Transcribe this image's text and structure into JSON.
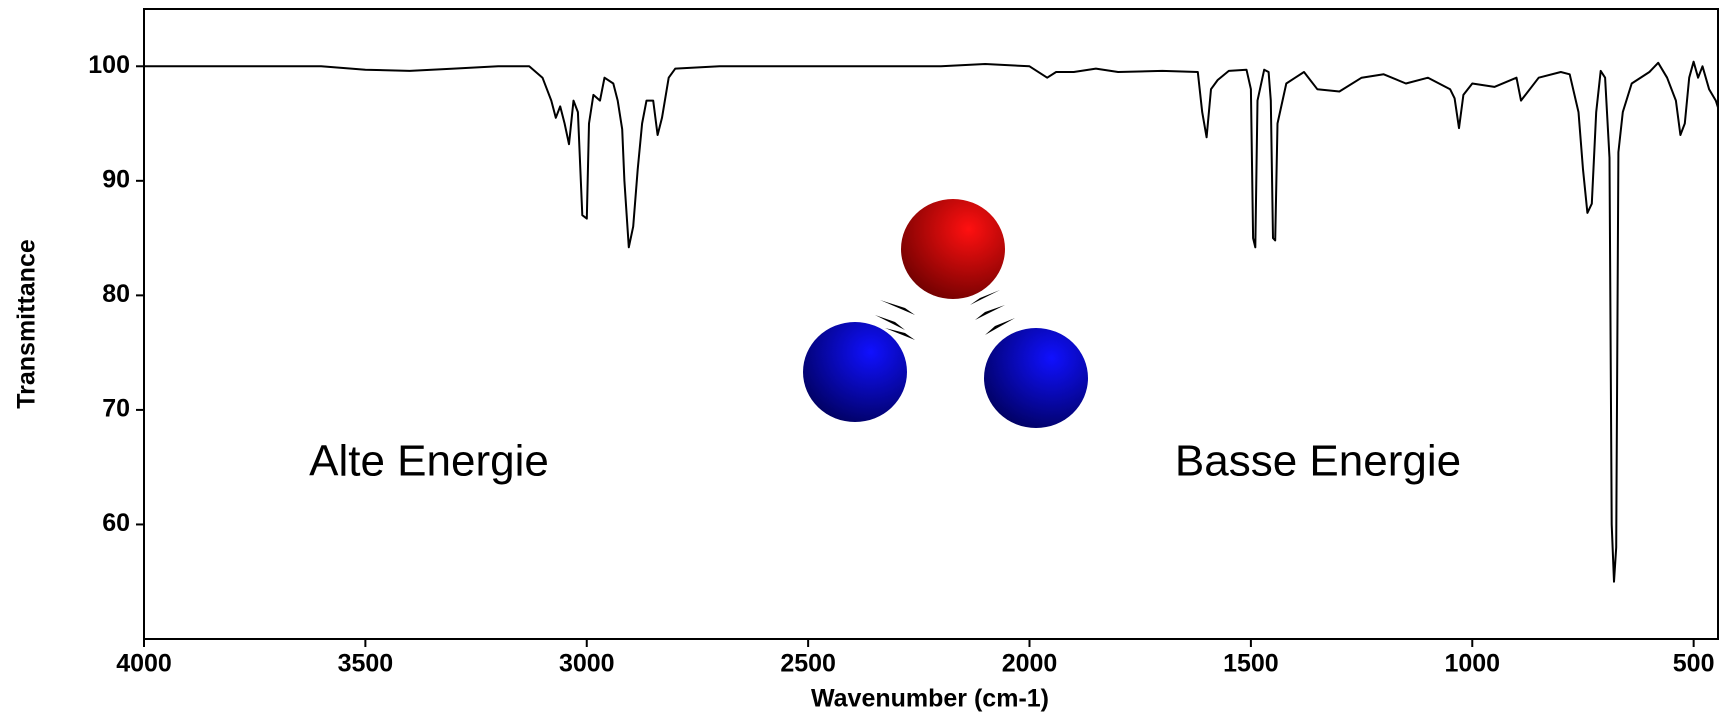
{
  "chart_data": {
    "type": "line",
    "x_label": "Wavenumber (cm-1)",
    "y_label": "Transmittance",
    "annotations": [
      "Alte Energie",
      "Basse Energie"
    ],
    "xlim": [
      4000,
      445
    ],
    "ylim": [
      50,
      105
    ],
    "xticks": [
      4000,
      3500,
      3000,
      2500,
      2000,
      1500,
      1000,
      500
    ],
    "yticks": [
      60,
      70,
      80,
      90,
      100
    ],
    "series": [
      {
        "color": "#000000",
        "x": [
          4000,
          3900,
          3800,
          3700,
          3600,
          3500,
          3400,
          3300,
          3200,
          3130,
          3100,
          3080,
          3070,
          3060,
          3050,
          3040,
          3030,
          3020,
          3010,
          3000,
          2995,
          2985,
          2970,
          2960,
          2940,
          2930,
          2920,
          2915,
          2905,
          2895,
          2885,
          2875,
          2865,
          2850,
          2840,
          2830,
          2815,
          2800,
          2700,
          2600,
          2500,
          2400,
          2300,
          2200,
          2100,
          2000,
          1960,
          1940,
          1900,
          1850,
          1800,
          1700,
          1620,
          1610,
          1600,
          1590,
          1575,
          1550,
          1510,
          1500,
          1495,
          1490,
          1485,
          1470,
          1460,
          1455,
          1450,
          1445,
          1440,
          1420,
          1400,
          1380,
          1350,
          1300,
          1250,
          1200,
          1150,
          1100,
          1050,
          1040,
          1030,
          1020,
          1000,
          950,
          900,
          890,
          850,
          800,
          780,
          760,
          750,
          740,
          730,
          720,
          710,
          700,
          690,
          685,
          680,
          675,
          670,
          660,
          640,
          600,
          580,
          560,
          540,
          530,
          520,
          510,
          500,
          490,
          480,
          465,
          450,
          445
        ],
        "values": [
          100,
          100,
          100,
          100,
          100,
          99.7,
          99.6,
          99.8,
          100,
          100,
          99,
          97,
          95.5,
          96.5,
          95,
          93.2,
          97,
          96,
          87,
          86.7,
          95,
          97.5,
          97,
          99,
          98.5,
          97,
          94.5,
          90,
          84.2,
          86,
          91,
          95,
          97,
          97,
          94,
          95.5,
          99,
          99.8,
          100,
          100,
          100,
          100,
          100,
          100,
          100.2,
          100,
          99,
          99.5,
          99.5,
          99.8,
          99.5,
          99.6,
          99.5,
          96,
          93.8,
          98,
          98.8,
          99.6,
          99.7,
          98,
          85,
          84.2,
          97,
          99.7,
          99.5,
          97,
          85,
          84.8,
          95,
          98.5,
          99,
          99.5,
          98,
          97.8,
          99,
          99.3,
          98.5,
          99,
          98,
          97.2,
          94.6,
          97.5,
          98.5,
          98.2,
          99,
          97,
          99,
          99.5,
          99.3,
          96,
          91,
          87.2,
          88,
          96,
          99.6,
          99,
          92,
          60,
          55,
          58,
          92.5,
          96,
          98.5,
          99.5,
          100.3,
          99,
          97,
          94,
          95,
          99,
          100.4,
          99,
          100,
          98,
          97,
          96.4
        ]
      }
    ]
  }
}
